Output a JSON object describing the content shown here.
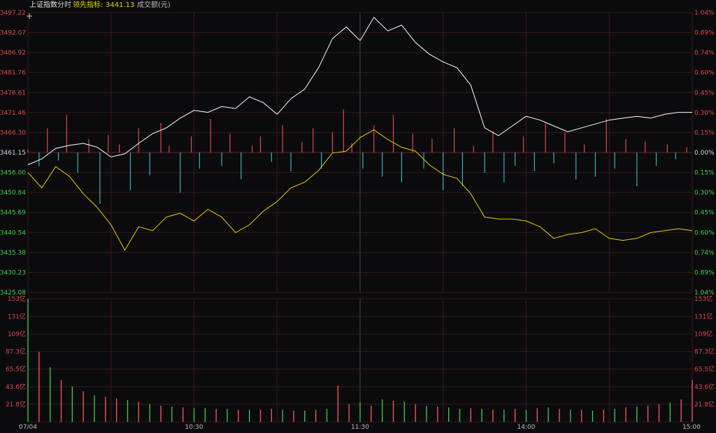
{
  "header": {
    "index_name": "上证指数",
    "mode": "分时",
    "leading_label": "领先指标:",
    "leading_value": "3441.13",
    "volume_label": "成交额(元)"
  },
  "colors": {
    "background": "#0b0b0d",
    "grid": "#3a1a1a",
    "up": "#e0484a",
    "down": "#3bb0bf",
    "price_line": "#ffffff",
    "leading_line": "#e6d200",
    "vol_up": "#ff5a5a",
    "vol_down": "#3fd24a",
    "neutral_label": "#d8d8d8"
  },
  "chart_data": {
    "type": "line",
    "date": "07/04",
    "prev_close": 3461.15,
    "price_axis": {
      "ticks": [
        "3497.22",
        "3492.07",
        "3486.92",
        "3481.76",
        "3476.61",
        "3471.46",
        "3466.30",
        "3461.15",
        "3456.00",
        "3450.84",
        "3445.69",
        "3440.54",
        "3435.38",
        "3430.23",
        "3425.08"
      ],
      "ylim": [
        3425.08,
        3497.22
      ]
    },
    "pct_axis": {
      "ticks": [
        "1.04%",
        "0.89%",
        "0.74%",
        "0.60%",
        "0.45%",
        "0.30%",
        "0.15%",
        "0.00%",
        "0.15%",
        "0.30%",
        "0.45%",
        "0.60%",
        "0.74%",
        "0.89%",
        "1.04%"
      ]
    },
    "volume_axis": {
      "ticks": [
        "153亿",
        "131亿",
        "109亿",
        "87.3亿",
        "65.5亿",
        "43.6亿",
        "21.8亿"
      ],
      "ylim": [
        0,
        153
      ]
    },
    "time_labels": [
      "07/04",
      "10:30",
      "11:30",
      "14:00",
      "15:00"
    ],
    "series": [
      {
        "name": "上证指数",
        "minutes": [
          0,
          5,
          10,
          15,
          20,
          25,
          30,
          35,
          40,
          45,
          50,
          55,
          60,
          65,
          70,
          75,
          80,
          85,
          90,
          95,
          100,
          105,
          110,
          115,
          120,
          125,
          130,
          135,
          140,
          145,
          150,
          155,
          160,
          165,
          170,
          175,
          180,
          185,
          190,
          195,
          200,
          205,
          210,
          215,
          220,
          225,
          230,
          235,
          240
        ],
        "values": [
          3458.0,
          3459.5,
          3462.2,
          3463.0,
          3463.5,
          3462.5,
          3460.0,
          3460.8,
          3463.5,
          3466.0,
          3467.5,
          3470.0,
          3472.0,
          3471.5,
          3473.0,
          3472.5,
          3475.5,
          3474.0,
          3471.0,
          3475.0,
          3477.5,
          3483.0,
          3490.5,
          3493.5,
          3490.0,
          3496.0,
          3492.5,
          3494.0,
          3489.5,
          3486.5,
          3484.5,
          3483.0,
          3478.5,
          3467.5,
          3465.5,
          3468.0,
          3470.5,
          3469.5,
          3468.0,
          3466.5,
          3467.5,
          3468.5,
          3469.5,
          3470.0,
          3470.5,
          3470.0,
          3471.0,
          3471.5,
          3471.5
        ]
      },
      {
        "name": "领先指标",
        "minutes": [
          0,
          5,
          10,
          15,
          20,
          25,
          30,
          35,
          40,
          45,
          50,
          55,
          60,
          65,
          70,
          75,
          80,
          85,
          90,
          95,
          100,
          105,
          110,
          115,
          120,
          125,
          130,
          135,
          140,
          145,
          150,
          155,
          160,
          165,
          170,
          175,
          180,
          185,
          190,
          195,
          200,
          205,
          210,
          215,
          220,
          225,
          230,
          235,
          240
        ],
        "values": [
          3456.0,
          3452.0,
          3457.5,
          3455.0,
          3450.5,
          3447.0,
          3442.5,
          3436.0,
          3442.0,
          3441.0,
          3444.5,
          3445.5,
          3443.5,
          3446.5,
          3444.5,
          3440.5,
          3442.5,
          3446.0,
          3448.5,
          3452.0,
          3453.5,
          3456.5,
          3461.0,
          3461.5,
          3465.0,
          3467.0,
          3464.5,
          3462.5,
          3461.5,
          3458.0,
          3455.5,
          3454.5,
          3450.5,
          3444.5,
          3444.0,
          3444.0,
          3443.5,
          3442.0,
          3439.0,
          3440.0,
          3440.5,
          3441.5,
          3439.0,
          3438.5,
          3439.0,
          3440.5,
          3441.0,
          3441.5,
          3441.0
        ]
      }
    ],
    "diff_bars": {
      "minutes": [
        0,
        4,
        7,
        11,
        14,
        18,
        22,
        26,
        29,
        33,
        37,
        40,
        44,
        48,
        51,
        55,
        59,
        62,
        66,
        70,
        73,
        77,
        81,
        84,
        88,
        92,
        95,
        99,
        103,
        106,
        110,
        114,
        117,
        121,
        125,
        128,
        132,
        135,
        139,
        143,
        146,
        150,
        154,
        157,
        161,
        165,
        168,
        172,
        176,
        179,
        183,
        187,
        190,
        194,
        198,
        201,
        205,
        209,
        212,
        216,
        220,
        223,
        227,
        231,
        234,
        238
      ],
      "values": [
        0.02,
        -0.1,
        0.18,
        -0.06,
        0.28,
        -0.15,
        0.1,
        -0.38,
        0.13,
        0.06,
        -0.28,
        0.18,
        -0.17,
        0.22,
        0.05,
        -0.3,
        0.12,
        -0.12,
        0.25,
        -0.1,
        0.14,
        -0.2,
        0.05,
        0.12,
        -0.07,
        0.2,
        -0.14,
        0.08,
        0.18,
        -0.12,
        0.15,
        0.32,
        0.07,
        -0.12,
        0.2,
        -0.18,
        0.28,
        -0.22,
        0.14,
        -0.12,
        0.1,
        -0.28,
        0.18,
        -0.25,
        0.05,
        -0.15,
        0.16,
        -0.22,
        -0.1,
        0.12,
        -0.14,
        0.22,
        -0.08,
        0.15,
        -0.2,
        0.06,
        -0.18,
        0.25,
        -0.12,
        0.1,
        -0.25,
        0.08,
        -0.1,
        0.06,
        -0.05,
        0.04
      ]
    },
    "volume": {
      "minutes": [
        0,
        4,
        8,
        12,
        16,
        20,
        24,
        28,
        32,
        36,
        40,
        44,
        48,
        52,
        56,
        60,
        64,
        68,
        72,
        76,
        80,
        84,
        88,
        92,
        96,
        100,
        104,
        108,
        112,
        116,
        120,
        124,
        128,
        132,
        136,
        140,
        144,
        148,
        152,
        156,
        160,
        164,
        168,
        172,
        176,
        180,
        184,
        188,
        192,
        196,
        200,
        204,
        208,
        212,
        216,
        220,
        224,
        228,
        232,
        236,
        240
      ],
      "values": [
        153,
        87,
        68,
        52,
        44,
        38,
        33,
        31,
        29,
        27,
        25,
        22,
        20,
        19,
        18,
        17,
        17,
        16,
        16,
        15,
        15,
        15,
        16,
        15,
        14,
        14,
        15,
        16,
        45,
        22,
        24,
        20,
        28,
        26,
        25,
        22,
        20,
        19,
        18,
        16,
        17,
        16,
        15,
        15,
        16,
        15,
        17,
        18,
        16,
        15,
        15,
        14,
        15,
        16,
        18,
        19,
        20,
        22,
        24,
        28,
        52
      ],
      "up": [
        false,
        true,
        false,
        true,
        false,
        true,
        false,
        true,
        true,
        false,
        true,
        false,
        true,
        false,
        true,
        false,
        false,
        true,
        false,
        true,
        false,
        true,
        true,
        false,
        true,
        false,
        true,
        false,
        true,
        true,
        false,
        true,
        false,
        true,
        false,
        true,
        false,
        true,
        false,
        false,
        true,
        false,
        true,
        false,
        true,
        false,
        true,
        false,
        true,
        false,
        true,
        false,
        true,
        false,
        true,
        false,
        true,
        true,
        false,
        true,
        true
      ]
    }
  }
}
